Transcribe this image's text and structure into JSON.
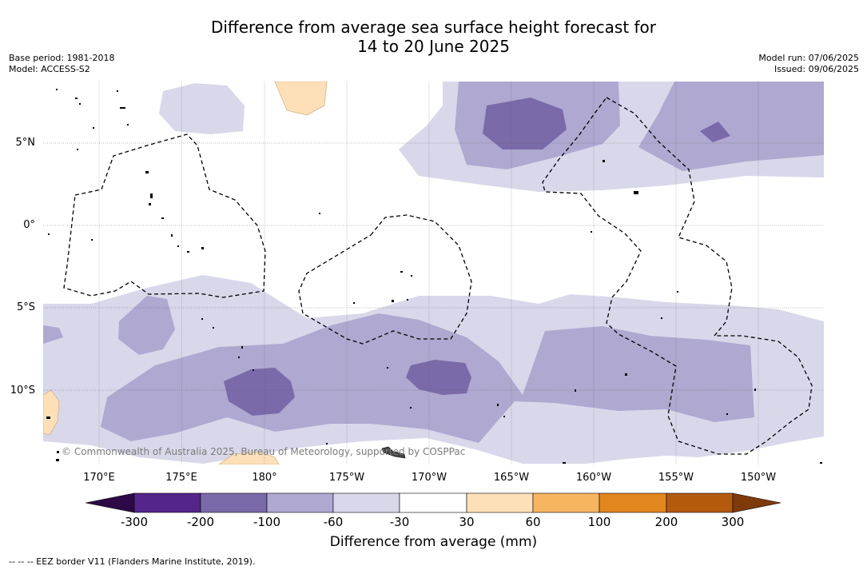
{
  "title_line1": "Difference from average sea surface height forecast for",
  "title_line2": "14 to 20 June 2025",
  "base_period": "Base period: 1981-2018",
  "model": "Model: ACCESS-S2",
  "model_run": "Model run: 07/06/2025",
  "issued": "Issued: 09/06/2025",
  "lat_labels": [
    "5°N",
    "0°",
    "5°S",
    "10°S"
  ],
  "lon_labels": [
    "170°E",
    "175°E",
    "180°",
    "175°W",
    "170°W",
    "165°W",
    "160°W",
    "155°W",
    "150°W"
  ],
  "copyright": "© Commonwealth of Australia 2025, Bureau of Meteorology, supported by COSPPac",
  "colorbar": {
    "title": "Difference from average (mm)",
    "tick_labels": [
      "-300",
      "-200",
      "-100",
      "-60",
      "-30",
      "30",
      "60",
      "100",
      "200",
      "300"
    ],
    "colors": [
      "#2d0a47",
      "#54258a",
      "#7b6aa9",
      "#afa8d0",
      "#d8d8ea",
      "#ffffff",
      "#fde0b8",
      "#f7b562",
      "#e2861e",
      "#b35a0d",
      "#7f3a0a"
    ]
  },
  "legend_eez": "-- -- -- EEZ border V11 (Flanders Marine Institute, 2019)."
}
